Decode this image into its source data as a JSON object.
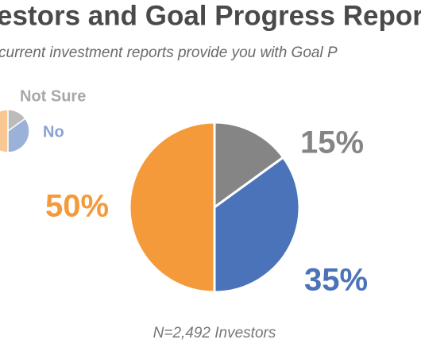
{
  "chart_data": {
    "type": "pie",
    "title": "estors and Goal Progress Repor",
    "subtitle": "current investment reports provide you with Goal P",
    "categories": [
      "Not Sure",
      "No",
      null
    ],
    "values": [
      15,
      35,
      50
    ],
    "value_labels": [
      "15%",
      "35%",
      "50%"
    ],
    "colors": [
      "#858585",
      "#4a73b9",
      "#f59a3a"
    ],
    "footnote": "N=2,492 Investors"
  }
}
